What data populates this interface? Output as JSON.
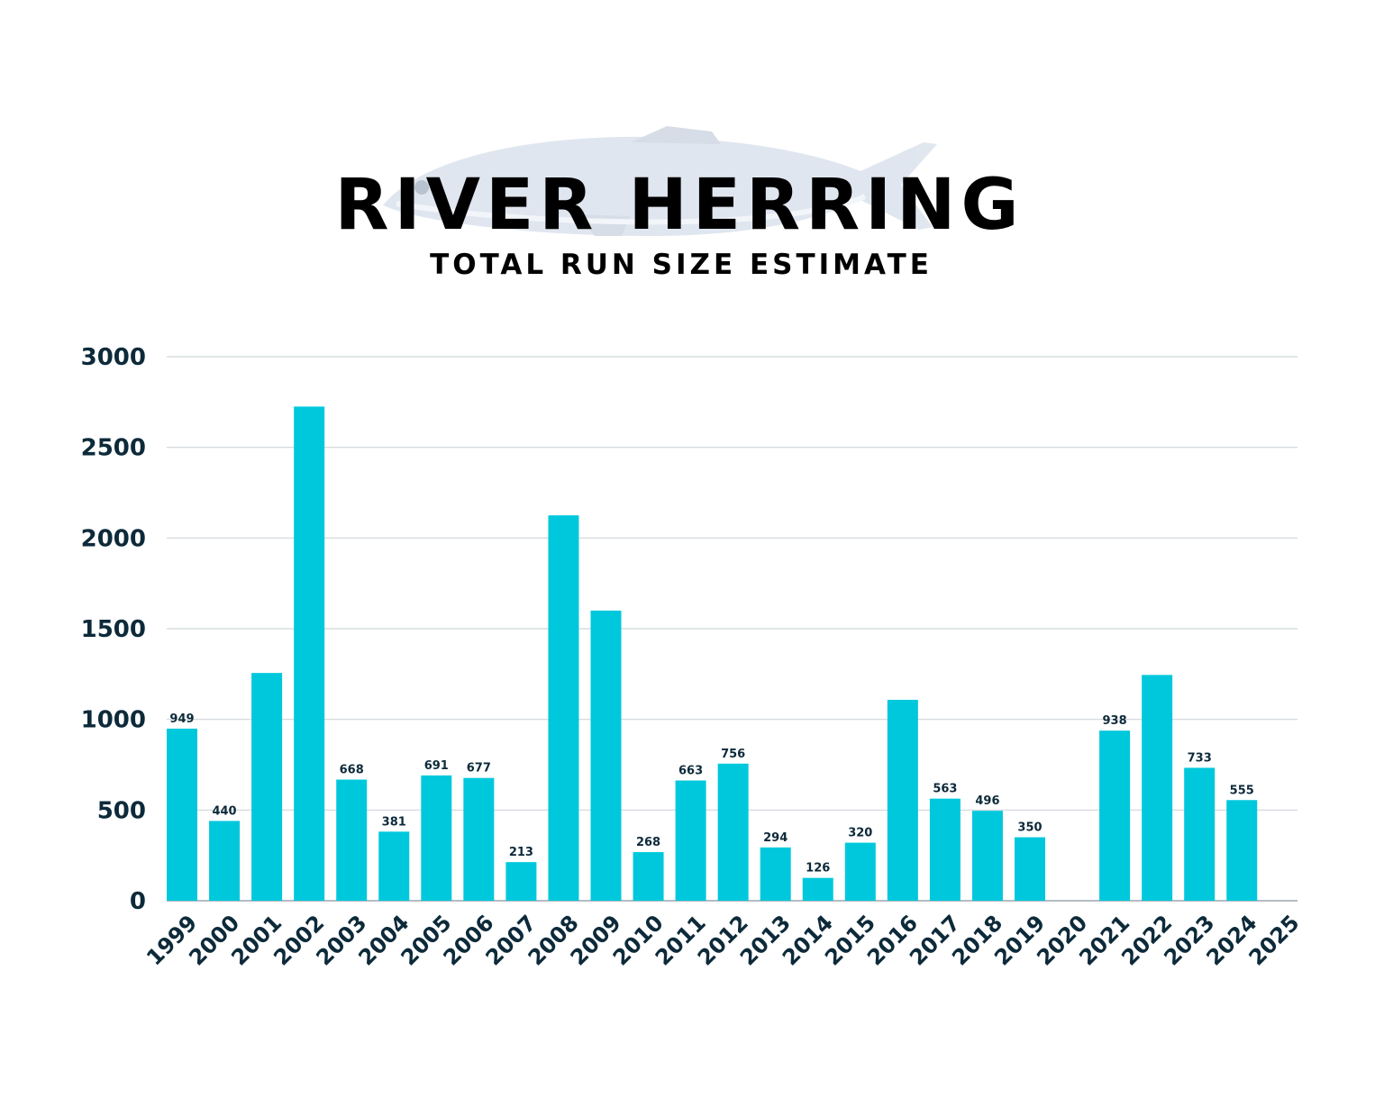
{
  "chart_data": {
    "type": "bar",
    "title": "RIVER HERRING",
    "subtitle": "TOTAL RUN SIZE ESTIMATE",
    "xlabel": "",
    "ylabel": "",
    "ylim": [
      0,
      3000
    ],
    "yticks": [
      "0",
      "500",
      "1000",
      "1500",
      "2000",
      "2500",
      "3000"
    ],
    "grid": true,
    "bar_color": "#00c8dc",
    "categories": [
      "1999",
      "2000",
      "2001",
      "2002",
      "2003",
      "2004",
      "2005",
      "2006",
      "2007",
      "2008",
      "2009",
      "2010",
      "2011",
      "2012",
      "2013",
      "2014",
      "2015",
      "2016",
      "2017",
      "2018",
      "2019",
      "2020",
      "2021",
      "2022",
      "2023",
      "2024",
      "2025"
    ],
    "values": [
      949,
      440,
      1256,
      2725,
      668,
      381,
      691,
      677,
      213,
      2125,
      1600,
      268,
      663,
      756,
      294,
      126,
      320,
      1108,
      563,
      496,
      350,
      null,
      938,
      1245,
      733,
      555,
      null
    ],
    "data_labels": [
      "949",
      "440",
      "",
      "",
      "668",
      "381",
      "691",
      "677",
      "213",
      "",
      "",
      "268",
      "663",
      "756",
      "294",
      "126",
      "320",
      "",
      "563",
      "496",
      "350",
      "",
      "938",
      "",
      "733",
      "555",
      ""
    ]
  },
  "illustration": {
    "icon": "herring-fish-icon",
    "color": "#b9c6d6"
  }
}
